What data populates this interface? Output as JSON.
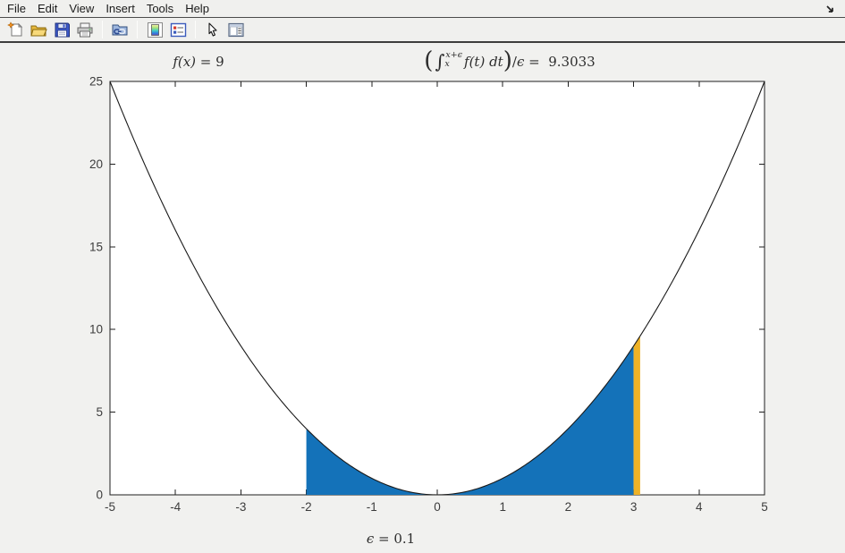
{
  "menu": {
    "items": [
      "File",
      "Edit",
      "View",
      "Insert",
      "Tools",
      "Help"
    ]
  },
  "toolbar": {
    "icons": [
      "new-document-icon",
      "open-folder-icon",
      "save-icon",
      "print-icon",
      "link-plot-icon",
      "insert-colorbar-icon",
      "insert-legend-icon",
      "edit-plot-arrow-icon",
      "property-inspector-icon"
    ]
  },
  "window": {
    "dock_icon": "dock-arrow-icon"
  },
  "titles": {
    "left": {
      "func": "f(x)",
      "eq": " = ",
      "value": "9"
    },
    "right": {
      "lparen": "(",
      "integral": "∫",
      "upper": "x+ϵ",
      "lower": "x",
      "integrand": "f(t) dt",
      "rparen": ")",
      "slash": "/",
      "epsilon": "ϵ",
      "eq": " =  ",
      "value": "9.3033"
    }
  },
  "xlabel": {
    "symbol": "ϵ",
    "eq": " = ",
    "value": "0.1"
  },
  "chart_data": {
    "type": "area",
    "function": "f(x) = x^2",
    "expr": "x*x",
    "title_left": "f(x) = 9",
    "title_right": "(∫_x^{x+ϵ} f(t) dt)/ϵ =  9.3033",
    "xlabel": "ϵ = 0.1",
    "xlim": [
      -5,
      5
    ],
    "ylim": [
      0,
      25
    ],
    "x_ticks": [
      -5,
      -4,
      -3,
      -2,
      -1,
      0,
      1,
      2,
      3,
      4,
      5
    ],
    "y_ticks": [
      0,
      5,
      10,
      15,
      20,
      25
    ],
    "grid": false,
    "box": true,
    "curve_color": "#1a1a1a",
    "axis_color": "#1f1f1f",
    "tick_label_color": "#3c3c3c",
    "plot_bg": "#ffffff",
    "regions": [
      {
        "name": "integral-area-fill",
        "from": -2,
        "to": 3,
        "color": "#1472b9"
      },
      {
        "name": "epsilon-strip-fill",
        "from": 3,
        "to": 3.1,
        "color": "#eeb227"
      }
    ]
  }
}
